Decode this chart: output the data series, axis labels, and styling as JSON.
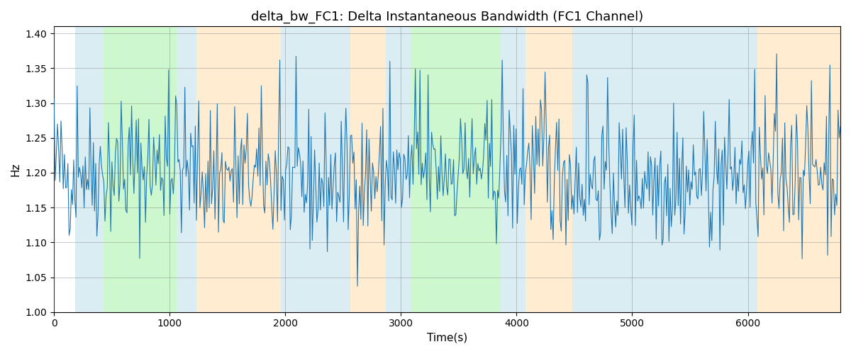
{
  "title": "delta_bw_FC1: Delta Instantaneous Bandwidth (FC1 Channel)",
  "xlabel": "Time(s)",
  "ylabel": "Hz",
  "ylim": [
    1.0,
    1.41
  ],
  "xlim": [
    0,
    6800
  ],
  "yticks": [
    1.0,
    1.05,
    1.1,
    1.15,
    1.2,
    1.25,
    1.3,
    1.35,
    1.4
  ],
  "line_color": "#1f77b4",
  "line_width": 0.8,
  "bg_color": "#ffffff",
  "figsize": [
    12,
    5
  ],
  "dpi": 100,
  "bands": [
    {
      "xmin": 185,
      "xmax": 430,
      "color": "#add8e6",
      "alpha": 0.45
    },
    {
      "xmin": 430,
      "xmax": 1060,
      "color": "#90ee90",
      "alpha": 0.45
    },
    {
      "xmin": 1060,
      "xmax": 1230,
      "color": "#add8e6",
      "alpha": 0.45
    },
    {
      "xmin": 1230,
      "xmax": 1960,
      "color": "#ffd59a",
      "alpha": 0.45
    },
    {
      "xmin": 1960,
      "xmax": 2560,
      "color": "#add8e6",
      "alpha": 0.45
    },
    {
      "xmin": 2560,
      "xmax": 2870,
      "color": "#ffd59a",
      "alpha": 0.45
    },
    {
      "xmin": 2870,
      "xmax": 3090,
      "color": "#add8e6",
      "alpha": 0.45
    },
    {
      "xmin": 3090,
      "xmax": 3860,
      "color": "#90ee90",
      "alpha": 0.45
    },
    {
      "xmin": 3860,
      "xmax": 4080,
      "color": "#add8e6",
      "alpha": 0.45
    },
    {
      "xmin": 4080,
      "xmax": 4480,
      "color": "#ffd59a",
      "alpha": 0.45
    },
    {
      "xmin": 4480,
      "xmax": 6080,
      "color": "#add8e6",
      "alpha": 0.45
    },
    {
      "xmin": 6080,
      "xmax": 6800,
      "color": "#ffd59a",
      "alpha": 0.45
    }
  ],
  "seed": 42,
  "n_points": 680,
  "base_mean": 1.195,
  "base_std": 0.048,
  "spike_prob": 0.08,
  "spike_mag": 0.07
}
